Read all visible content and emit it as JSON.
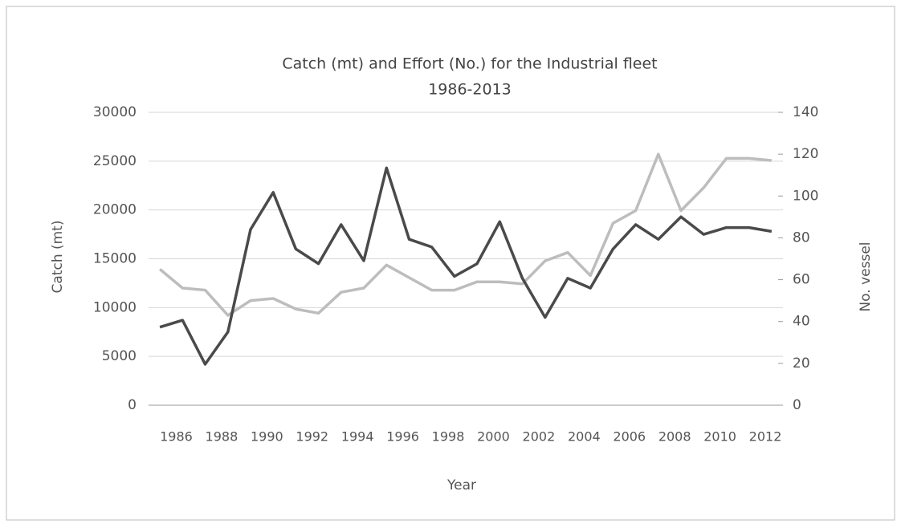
{
  "chart_data": {
    "type": "line",
    "title": "Catch (mt) and Effort (No.) for the  Industrial fleet",
    "subtitle": "1986-2013",
    "x_label": "Year",
    "y_label": "Catch (mt)",
    "y2_label": "No. vessel",
    "categories": [
      "1986",
      null,
      "1988",
      null,
      "1990",
      null,
      "1992",
      null,
      "1994",
      null,
      "1996",
      null,
      "1998",
      null,
      "2000",
      null,
      "2002",
      null,
      "2004",
      null,
      "2006",
      null,
      "2008",
      null,
      "2010",
      null,
      "2012",
      null
    ],
    "series": [
      {
        "color": "#4a4a4a",
        "values": [
          8000,
          8700,
          4200,
          7500,
          18000,
          21800,
          16000,
          14500,
          18500,
          14800,
          24300,
          17000,
          16200,
          13200,
          14500,
          18800,
          13000,
          9000,
          13000,
          12000,
          16000,
          18500,
          17000,
          19300,
          17500,
          18200,
          18200,
          17800
        ]
      },
      {
        "color": "#bdbdbd",
        "axis": "y2",
        "values": [
          65,
          56,
          55,
          43,
          50,
          51,
          46,
          44,
          54,
          56,
          67,
          61,
          55,
          55,
          59,
          59,
          58,
          69,
          73,
          62,
          87,
          93,
          120,
          93,
          104,
          118,
          118,
          117
        ]
      }
    ],
    "ylim": [
      0,
      30000
    ],
    "yticks": [
      0,
      5000,
      10000,
      15000,
      20000,
      25000,
      30000
    ],
    "y2lim": [
      0,
      140
    ],
    "y2ticks": [
      0,
      20,
      40,
      60,
      80,
      100,
      120,
      140
    ],
    "grid": true
  }
}
